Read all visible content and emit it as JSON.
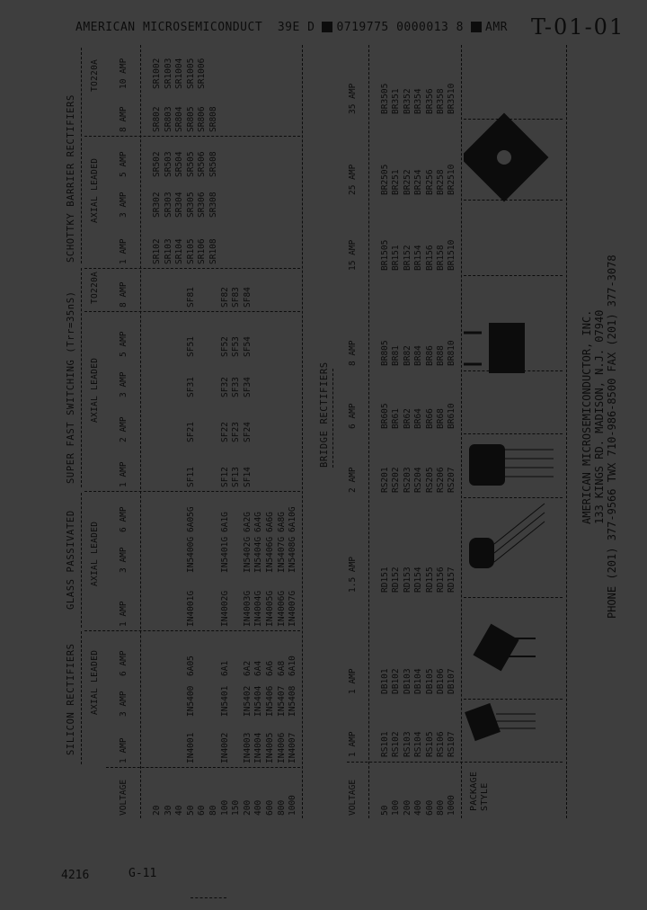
{
  "header": {
    "left": "AMERICAN MICROSEMICONDUCT  39E D",
    "code": "0719775 0000013 8",
    "amr": "AMR",
    "handwritten": "T-01-01"
  },
  "discrete": {
    "groups": [
      {
        "title": "SILICON RECTIFIERS",
        "sub": "AXIAL LEADED"
      },
      {
        "title": "GLASS PASSIVATED",
        "sub": "AXIAL LEADED"
      },
      {
        "title": "SUPER FAST SWITCHING (Trr=35nS)",
        "sub": "AXIAL LEADED",
        "sub2": "TO220A"
      },
      {
        "title": "SCHOTTKY BARRIER RECTIFIERS",
        "sub": "AXIAL LEADED",
        "sub2": "TO220A"
      }
    ],
    "columns": [
      "VOLTAGE",
      "1 AMP",
      "3 AMP",
      "6 AMP",
      "1 AMP",
      "3 AMP",
      "6 AMP",
      "1 AMP",
      "2 AMP",
      "3 AMP",
      "5 AMP",
      "8 AMP",
      "1 AMP",
      "3 AMP",
      "5 AMP",
      "8 AMP",
      "10 AMP"
    ],
    "rows": [
      [
        "20",
        "",
        "",
        "",
        "",
        "",
        "",
        "",
        "",
        "",
        "",
        "",
        "SR102",
        "SR302",
        "SR502",
        "SR802",
        "SR1002"
      ],
      [
        "30",
        "",
        "",
        "",
        "",
        "",
        "",
        "",
        "",
        "",
        "",
        "",
        "SR103",
        "SR303",
        "SR503",
        "SR803",
        "SR1003"
      ],
      [
        "40",
        "",
        "",
        "",
        "",
        "",
        "",
        "",
        "",
        "",
        "",
        "",
        "SR104",
        "SR304",
        "SR504",
        "SR804",
        "SR1004"
      ],
      [
        "50",
        "IN4001",
        "IN5400",
        "6A05",
        "IN4001G",
        "IN5400G",
        "6A05G",
        "SF11",
        "SF21",
        "SF31",
        "SF51",
        "SF81",
        "SR105",
        "SR305",
        "SR505",
        "SR805",
        "SR1005"
      ],
      [
        "60",
        "",
        "",
        "",
        "",
        "",
        "",
        "",
        "",
        "",
        "",
        "",
        "SR106",
        "SR306",
        "SR506",
        "SR806",
        "SR1006"
      ],
      [
        "80",
        "",
        "",
        "",
        "",
        "",
        "",
        "",
        "",
        "",
        "",
        "",
        "SR108",
        "SR308",
        "SR508",
        "SR808",
        ""
      ],
      [
        "100",
        "IN4002",
        "IN5401",
        "6A1",
        "IN4002G",
        "IN5401G",
        "6A1G",
        "SF12",
        "SF22",
        "SF32",
        "SF52",
        "SF82",
        "",
        "",
        "",
        "",
        ""
      ],
      [
        "150",
        "",
        "",
        "",
        "",
        "",
        "",
        "SF13",
        "SF23",
        "SF33",
        "SF53",
        "SF83",
        "",
        "",
        "",
        "",
        ""
      ],
      [
        "200",
        "IN4003",
        "IN5402",
        "6A2",
        "IN4003G",
        "IN5402G",
        "6A2G",
        "SF14",
        "SF24",
        "SF34",
        "SF54",
        "SF84",
        "",
        "",
        "",
        "",
        ""
      ],
      [
        "400",
        "IN4004",
        "IN5404",
        "6A4",
        "IN4004G",
        "IN5404G",
        "6A4G",
        "",
        "",
        "",
        "",
        "",
        "",
        "",
        "",
        "",
        ""
      ],
      [
        "600",
        "IN4005",
        "IN5406",
        "6A6",
        "IN4005G",
        "IN5406G",
        "6A6G",
        "",
        "",
        "",
        "",
        "",
        "",
        "",
        "",
        "",
        ""
      ],
      [
        "800",
        "IN4006",
        "IN5407",
        "6A8",
        "IN4006G",
        "IN5407G",
        "6A8G",
        "",
        "",
        "",
        "",
        "",
        "",
        "",
        "",
        "",
        ""
      ],
      [
        "1000",
        "IN4007",
        "IN5408",
        "6A10",
        "IN4007G",
        "IN5408G",
        "6A10G",
        "",
        "",
        "",
        "",
        "",
        "",
        "",
        "",
        "",
        ""
      ]
    ]
  },
  "bridge": {
    "title": "BRIDGE RECTIFIERS",
    "columns": [
      "VOLTAGE",
      "1 AMP",
      "1 AMP",
      "1.5 AMP",
      "2 AMP",
      "6 AMP",
      "8 AMP",
      "15 AMP",
      "25 AMP",
      "35 AMP"
    ],
    "rows": [
      [
        "50",
        "RS101",
        "DB101",
        "RD151",
        "RS201",
        "BR605",
        "BR805",
        "BR1505",
        "BR2505",
        "BR3505"
      ],
      [
        "100",
        "RS102",
        "DB102",
        "RD152",
        "RS202",
        "BR61",
        "BR81",
        "BR151",
        "BR251",
        "BR351"
      ],
      [
        "200",
        "RS103",
        "DB103",
        "RD153",
        "RS203",
        "BR62",
        "BR82",
        "BR152",
        "BR252",
        "BR352"
      ],
      [
        "400",
        "RS104",
        "DB104",
        "RD154",
        "RS204",
        "BR64",
        "BR84",
        "BR154",
        "BR254",
        "BR354"
      ],
      [
        "600",
        "RS105",
        "DB105",
        "RD155",
        "RS205",
        "BR66",
        "BR86",
        "BR156",
        "BR256",
        "BR356"
      ],
      [
        "800",
        "RS106",
        "DB106",
        "RD156",
        "RS206",
        "BR68",
        "BR88",
        "BR158",
        "BR258",
        "BR358"
      ],
      [
        "1000",
        "RS107",
        "DB107",
        "RD157",
        "RS207",
        "BR610",
        "BR810",
        "BR1510",
        "BR2510",
        "BR3510"
      ]
    ],
    "package_label_1": "PACKAGE",
    "package_label_2": "STYLE"
  },
  "company": {
    "name": "AMERICAN MICROSEMICONDUCTOR, INC.",
    "address": "133 KINGS RD.  MADISON, N.J. 07940",
    "phone": "PHONE (201)  377-9566  TWX 710-986-8500  FAX (201) 377-3078"
  },
  "page": {
    "number": "4216",
    "section": "G-11"
  },
  "colors": {
    "background": "#3e3e3e",
    "ink": "#0c0c0c"
  }
}
